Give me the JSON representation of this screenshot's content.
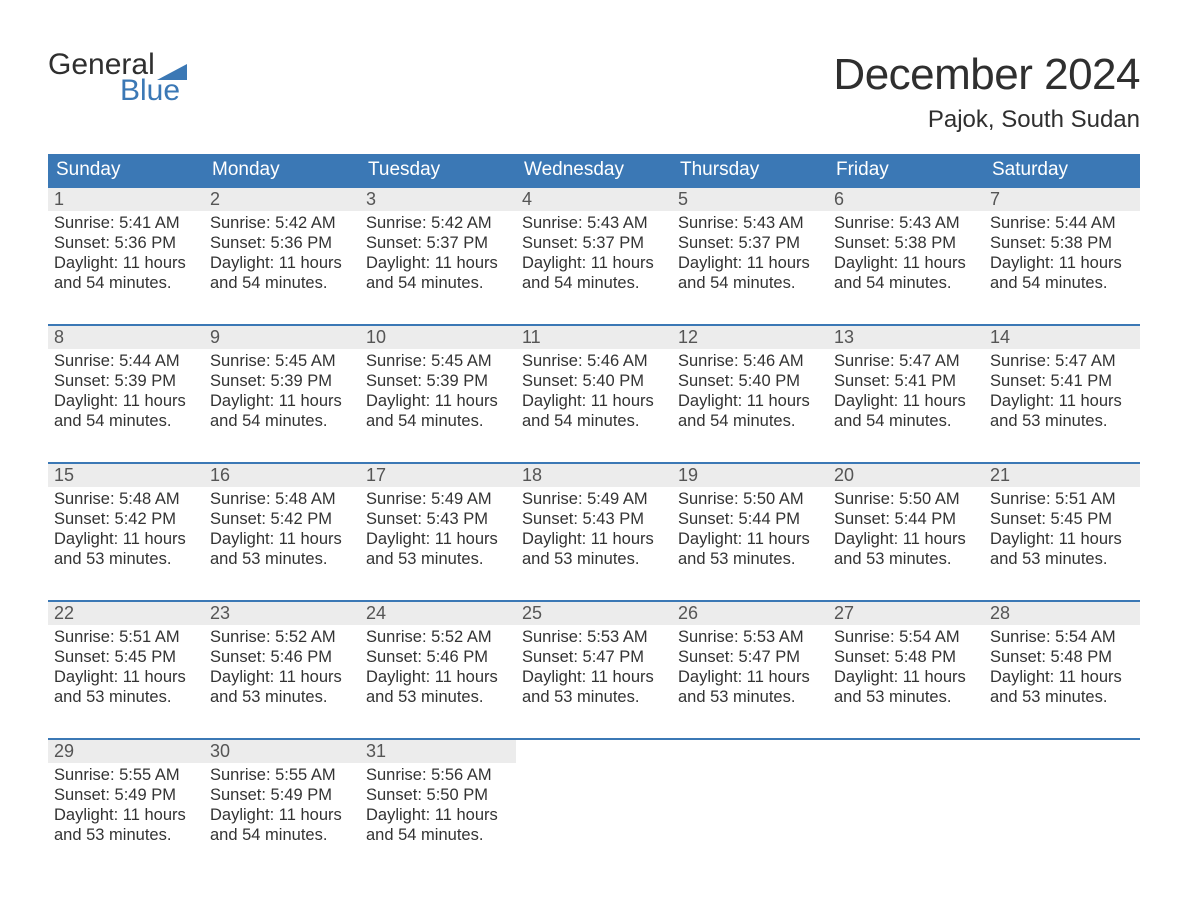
{
  "brand": {
    "word1": "General",
    "word2": "Blue"
  },
  "title": "December 2024",
  "location": "Pajok, South Sudan",
  "colors": {
    "header_bg": "#3b78b5",
    "header_text": "#ffffff",
    "daynum_bg": "#ececec",
    "daynum_text": "#555555",
    "body_text": "#333333",
    "week_border": "#3b78b5",
    "page_bg": "#ffffff",
    "logo_gray": "#2f2f2f",
    "logo_blue": "#3b78b5"
  },
  "day_headers": [
    "Sunday",
    "Monday",
    "Tuesday",
    "Wednesday",
    "Thursday",
    "Friday",
    "Saturday"
  ],
  "weeks": [
    [
      {
        "n": "1",
        "sunrise": "Sunrise: 5:41 AM",
        "sunset": "Sunset: 5:36 PM",
        "dl1": "Daylight: 11 hours",
        "dl2": "and 54 minutes."
      },
      {
        "n": "2",
        "sunrise": "Sunrise: 5:42 AM",
        "sunset": "Sunset: 5:36 PM",
        "dl1": "Daylight: 11 hours",
        "dl2": "and 54 minutes."
      },
      {
        "n": "3",
        "sunrise": "Sunrise: 5:42 AM",
        "sunset": "Sunset: 5:37 PM",
        "dl1": "Daylight: 11 hours",
        "dl2": "and 54 minutes."
      },
      {
        "n": "4",
        "sunrise": "Sunrise: 5:43 AM",
        "sunset": "Sunset: 5:37 PM",
        "dl1": "Daylight: 11 hours",
        "dl2": "and 54 minutes."
      },
      {
        "n": "5",
        "sunrise": "Sunrise: 5:43 AM",
        "sunset": "Sunset: 5:37 PM",
        "dl1": "Daylight: 11 hours",
        "dl2": "and 54 minutes."
      },
      {
        "n": "6",
        "sunrise": "Sunrise: 5:43 AM",
        "sunset": "Sunset: 5:38 PM",
        "dl1": "Daylight: 11 hours",
        "dl2": "and 54 minutes."
      },
      {
        "n": "7",
        "sunrise": "Sunrise: 5:44 AM",
        "sunset": "Sunset: 5:38 PM",
        "dl1": "Daylight: 11 hours",
        "dl2": "and 54 minutes."
      }
    ],
    [
      {
        "n": "8",
        "sunrise": "Sunrise: 5:44 AM",
        "sunset": "Sunset: 5:39 PM",
        "dl1": "Daylight: 11 hours",
        "dl2": "and 54 minutes."
      },
      {
        "n": "9",
        "sunrise": "Sunrise: 5:45 AM",
        "sunset": "Sunset: 5:39 PM",
        "dl1": "Daylight: 11 hours",
        "dl2": "and 54 minutes."
      },
      {
        "n": "10",
        "sunrise": "Sunrise: 5:45 AM",
        "sunset": "Sunset: 5:39 PM",
        "dl1": "Daylight: 11 hours",
        "dl2": "and 54 minutes."
      },
      {
        "n": "11",
        "sunrise": "Sunrise: 5:46 AM",
        "sunset": "Sunset: 5:40 PM",
        "dl1": "Daylight: 11 hours",
        "dl2": "and 54 minutes."
      },
      {
        "n": "12",
        "sunrise": "Sunrise: 5:46 AM",
        "sunset": "Sunset: 5:40 PM",
        "dl1": "Daylight: 11 hours",
        "dl2": "and 54 minutes."
      },
      {
        "n": "13",
        "sunrise": "Sunrise: 5:47 AM",
        "sunset": "Sunset: 5:41 PM",
        "dl1": "Daylight: 11 hours",
        "dl2": "and 54 minutes."
      },
      {
        "n": "14",
        "sunrise": "Sunrise: 5:47 AM",
        "sunset": "Sunset: 5:41 PM",
        "dl1": "Daylight: 11 hours",
        "dl2": "and 53 minutes."
      }
    ],
    [
      {
        "n": "15",
        "sunrise": "Sunrise: 5:48 AM",
        "sunset": "Sunset: 5:42 PM",
        "dl1": "Daylight: 11 hours",
        "dl2": "and 53 minutes."
      },
      {
        "n": "16",
        "sunrise": "Sunrise: 5:48 AM",
        "sunset": "Sunset: 5:42 PM",
        "dl1": "Daylight: 11 hours",
        "dl2": "and 53 minutes."
      },
      {
        "n": "17",
        "sunrise": "Sunrise: 5:49 AM",
        "sunset": "Sunset: 5:43 PM",
        "dl1": "Daylight: 11 hours",
        "dl2": "and 53 minutes."
      },
      {
        "n": "18",
        "sunrise": "Sunrise: 5:49 AM",
        "sunset": "Sunset: 5:43 PM",
        "dl1": "Daylight: 11 hours",
        "dl2": "and 53 minutes."
      },
      {
        "n": "19",
        "sunrise": "Sunrise: 5:50 AM",
        "sunset": "Sunset: 5:44 PM",
        "dl1": "Daylight: 11 hours",
        "dl2": "and 53 minutes."
      },
      {
        "n": "20",
        "sunrise": "Sunrise: 5:50 AM",
        "sunset": "Sunset: 5:44 PM",
        "dl1": "Daylight: 11 hours",
        "dl2": "and 53 minutes."
      },
      {
        "n": "21",
        "sunrise": "Sunrise: 5:51 AM",
        "sunset": "Sunset: 5:45 PM",
        "dl1": "Daylight: 11 hours",
        "dl2": "and 53 minutes."
      }
    ],
    [
      {
        "n": "22",
        "sunrise": "Sunrise: 5:51 AM",
        "sunset": "Sunset: 5:45 PM",
        "dl1": "Daylight: 11 hours",
        "dl2": "and 53 minutes."
      },
      {
        "n": "23",
        "sunrise": "Sunrise: 5:52 AM",
        "sunset": "Sunset: 5:46 PM",
        "dl1": "Daylight: 11 hours",
        "dl2": "and 53 minutes."
      },
      {
        "n": "24",
        "sunrise": "Sunrise: 5:52 AM",
        "sunset": "Sunset: 5:46 PM",
        "dl1": "Daylight: 11 hours",
        "dl2": "and 53 minutes."
      },
      {
        "n": "25",
        "sunrise": "Sunrise: 5:53 AM",
        "sunset": "Sunset: 5:47 PM",
        "dl1": "Daylight: 11 hours",
        "dl2": "and 53 minutes."
      },
      {
        "n": "26",
        "sunrise": "Sunrise: 5:53 AM",
        "sunset": "Sunset: 5:47 PM",
        "dl1": "Daylight: 11 hours",
        "dl2": "and 53 minutes."
      },
      {
        "n": "27",
        "sunrise": "Sunrise: 5:54 AM",
        "sunset": "Sunset: 5:48 PM",
        "dl1": "Daylight: 11 hours",
        "dl2": "and 53 minutes."
      },
      {
        "n": "28",
        "sunrise": "Sunrise: 5:54 AM",
        "sunset": "Sunset: 5:48 PM",
        "dl1": "Daylight: 11 hours",
        "dl2": "and 53 minutes."
      }
    ],
    [
      {
        "n": "29",
        "sunrise": "Sunrise: 5:55 AM",
        "sunset": "Sunset: 5:49 PM",
        "dl1": "Daylight: 11 hours",
        "dl2": "and 53 minutes."
      },
      {
        "n": "30",
        "sunrise": "Sunrise: 5:55 AM",
        "sunset": "Sunset: 5:49 PM",
        "dl1": "Daylight: 11 hours",
        "dl2": "and 54 minutes."
      },
      {
        "n": "31",
        "sunrise": "Sunrise: 5:56 AM",
        "sunset": "Sunset: 5:50 PM",
        "dl1": "Daylight: 11 hours",
        "dl2": "and 54 minutes."
      },
      null,
      null,
      null,
      null
    ]
  ],
  "typography": {
    "title_fontsize": 44,
    "location_fontsize": 24,
    "dayheader_fontsize": 19,
    "daynum_fontsize": 18,
    "body_fontsize": 16.5
  }
}
